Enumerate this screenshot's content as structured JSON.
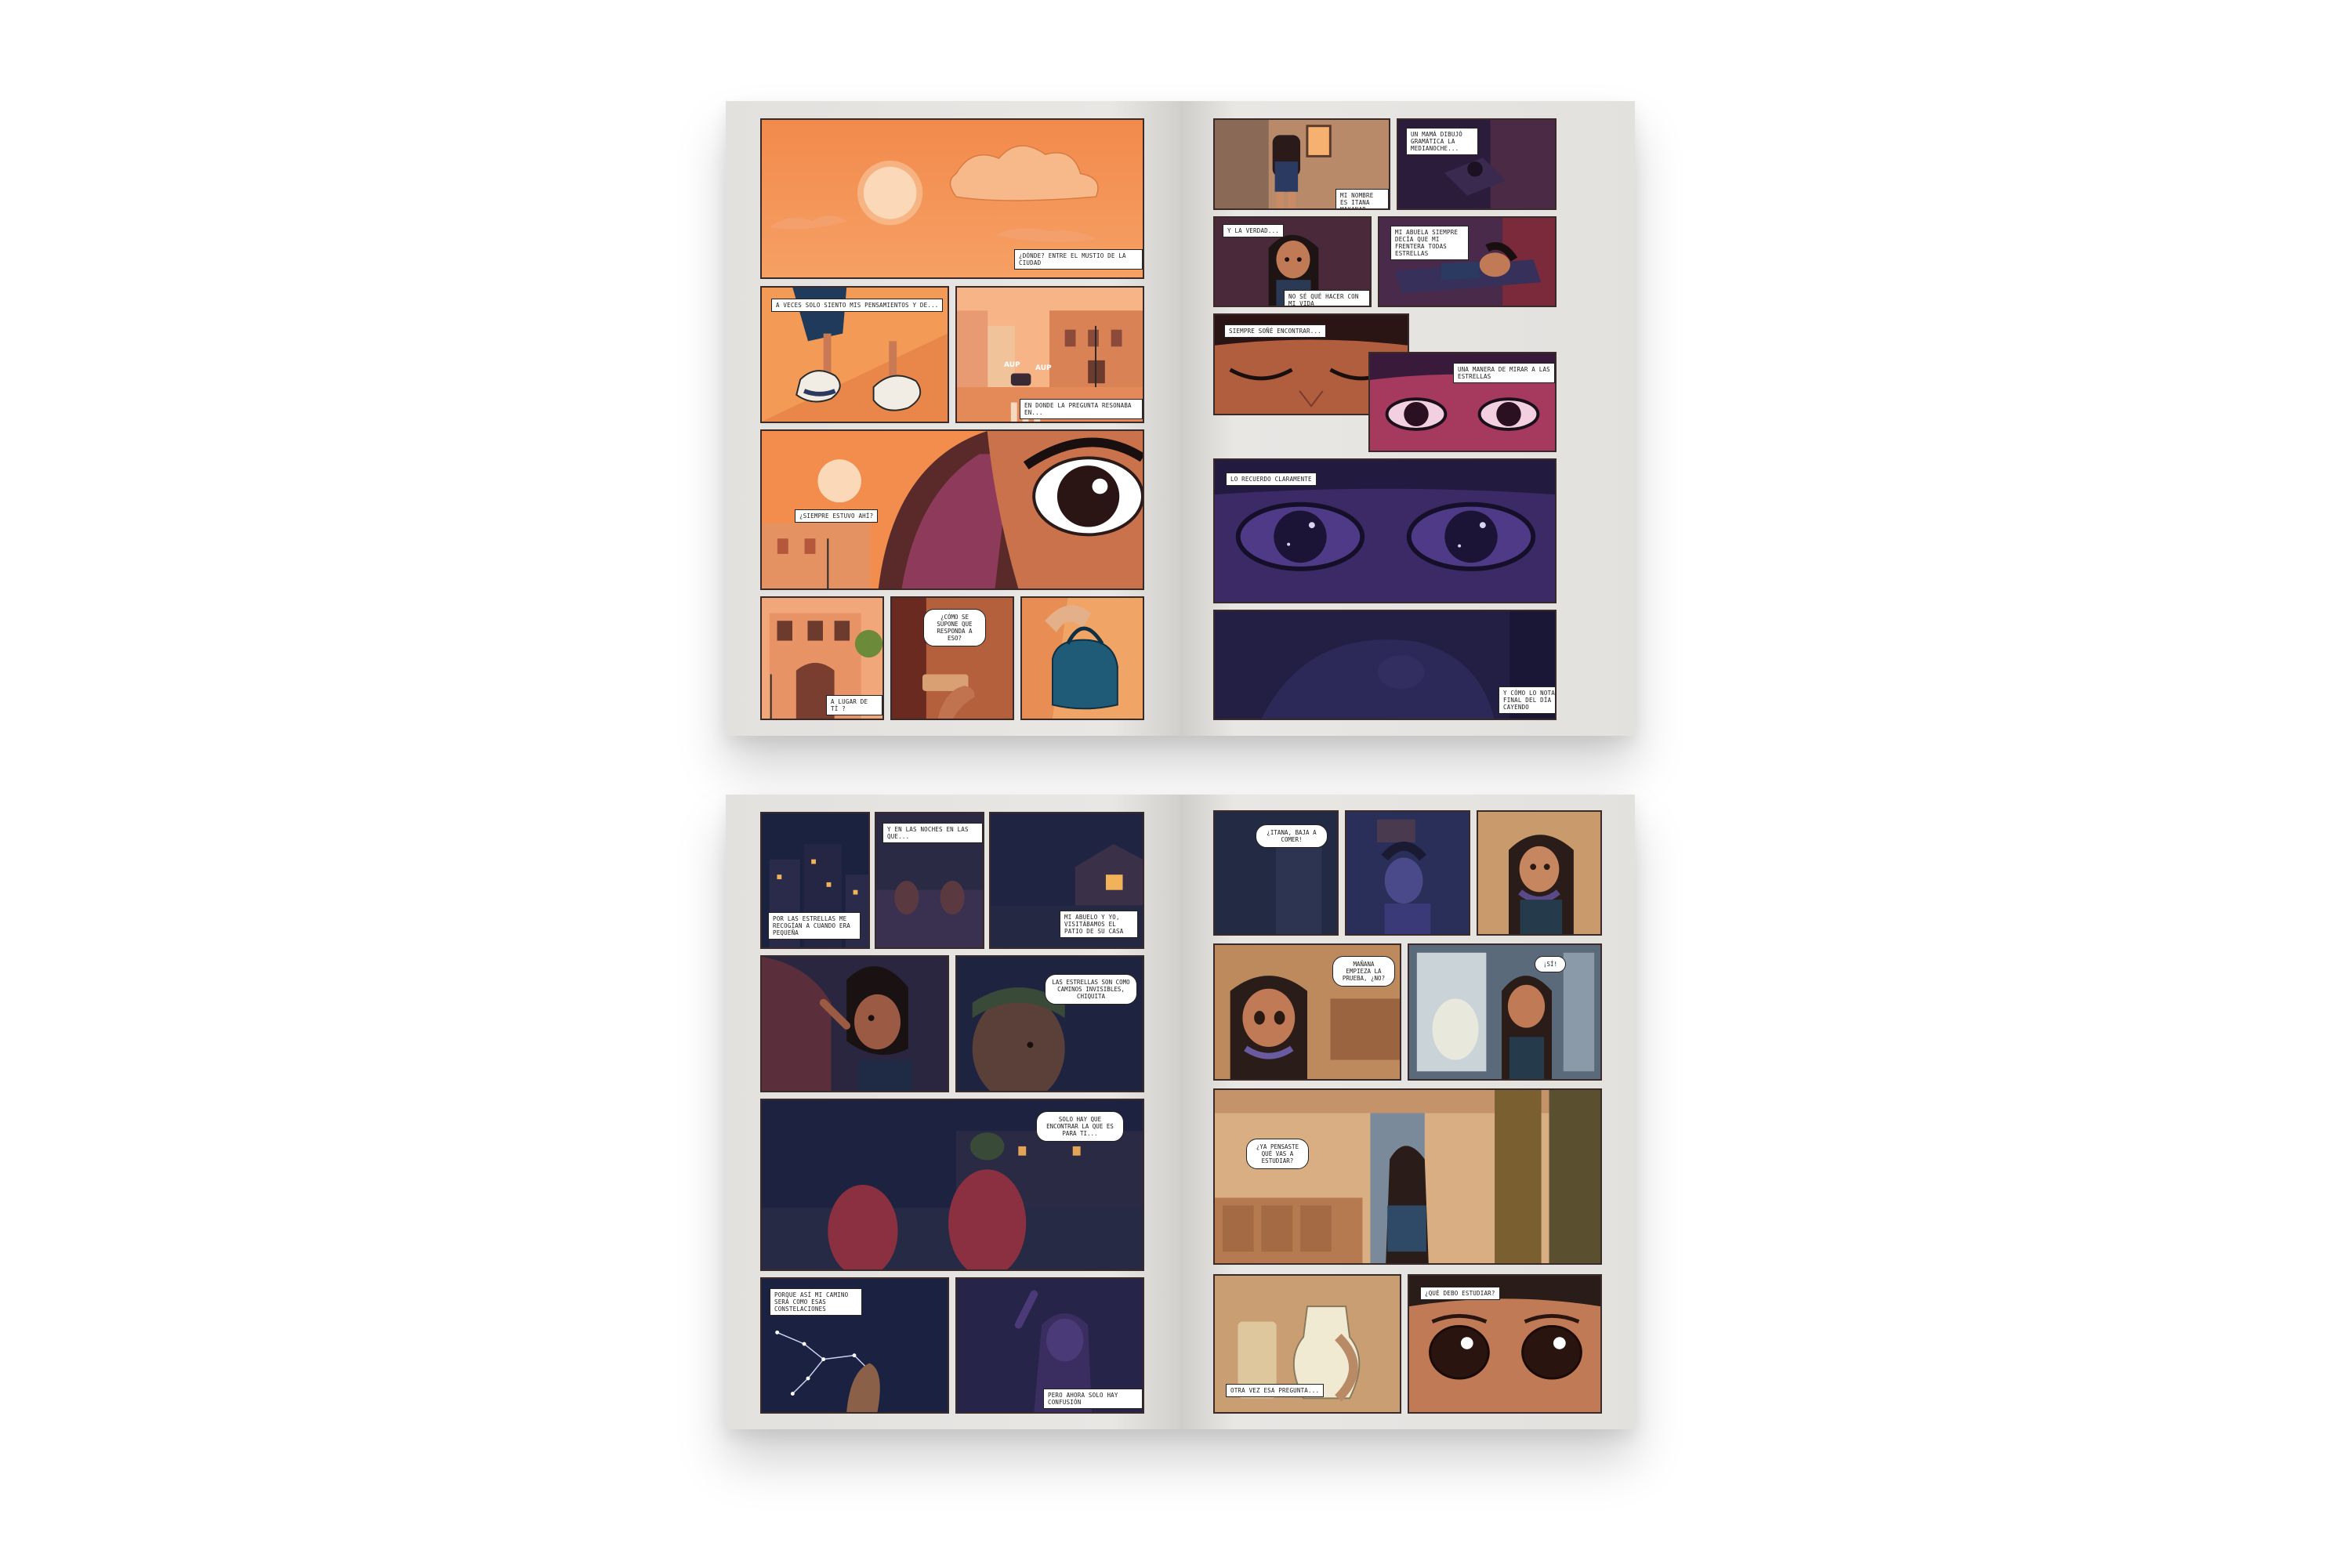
{
  "spreads": [
    {
      "left_page": {
        "captions": {
          "p1": "¿DÓNDE? ENTRE EL MUSTIO DE LA CIUDAD",
          "p2": "A VECES SOLO SIENTO MIS PENSAMIENTOS Y DE...",
          "p3": "EN DONDE LA PREGUNTA RESONABA EN...",
          "p4": "¿SIEMPRE ESTUVO AHÍ?",
          "p5": "A LUGAR DE TÍ ?",
          "p6": "¿CÓMO SE SUPONE QUE RESPONDA A ESO?"
        },
        "sfx": {
          "a": "AUP",
          "b": "AUP"
        }
      },
      "right_page": {
        "captions": {
          "p1": "MI NOMBRE ES ITANA MAKANAR",
          "p2": "UN MAMÁ DIBUJÓ GRAMÁTICA LA MEDIANOCHE...",
          "p3": "Y LA VERDAD...",
          "p4": "NO SÉ QUÉ HACER CON MI VIDA",
          "p5": "MI ABUELA SIEMPRE DECÍA QUE MI FRENTERA TODAS ESTRELLAS",
          "p6": "SIEMPRE SOÑÉ ENCONTRAR...",
          "p7": "UNA MANERA DE MIRAR A LAS ESTRELLAS",
          "p8": "LO RECUERDO CLARAMENTE",
          "p9": "Y CÓMO LO NOTAMOS AL FINAL DEL DÍA SEGUÍA CAYENDO"
        }
      }
    },
    {
      "left_page": {
        "captions": {
          "p1": "Y EN LAS NOCHES EN LAS QUE...",
          "p2": "POR LAS ESTRELLAS ME RECOGÍAN A CUANDO ERA PEQUEÑA",
          "p3": "MI ABUELO Y YO, VISITÁBAMOS EL PATIO DE SU CASA",
          "p4": "LAS ESTRELLAS SON COMO CAMINOS INVISIBLES, CHIQUITA",
          "p5": "SOLO HAY QUE ENCONTRAR LA QUE ES PARA TI...",
          "p6": "PORQUE ASÍ MI CAMINO SERÁ COMO ESAS CONSTELACIONES",
          "p7": "PERO AHORA SOLO HAY CONFUSIÓN"
        }
      },
      "right_page": {
        "captions": {
          "p1": "¿ITANA, BAJA A COMER!",
          "p2": "MAÑANA EMPIEZA LA PRUEBA, ¿NO?",
          "p3": "¡SÍ!",
          "p4": "¿YA PENSASTE QUÉ VAS A ESTUDIAR?",
          "p5": "¿QUÉ DEBO ESTUDIAR?",
          "p6": "OTRA VEZ ESA PREGUNTA..."
        }
      }
    }
  ],
  "colors": {
    "sunset_orange": "#f0944f",
    "sunset_light": "#f7b98a",
    "night_navy": "#1f2340",
    "purple_night": "#3b2a66",
    "paper": "#e6e4e1",
    "ink": "#3a2a2a"
  }
}
